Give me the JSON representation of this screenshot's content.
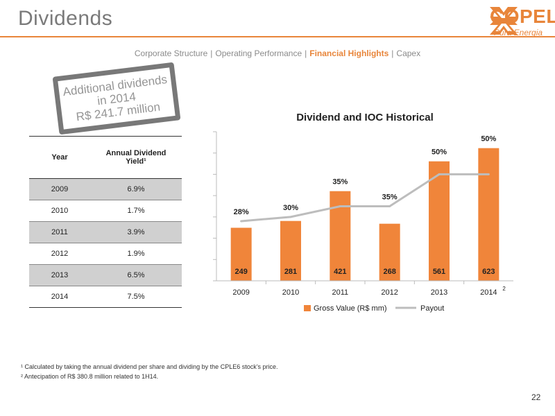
{
  "page": {
    "title": "Dividends",
    "page_number": "22"
  },
  "logo": {
    "name": "COPEL",
    "tagline": "Pura Energia"
  },
  "nav": {
    "items": [
      {
        "label": "Corporate Structure",
        "active": false
      },
      {
        "label": "Operating Performance",
        "active": false
      },
      {
        "label": "Financial Highlights",
        "active": true
      },
      {
        "label": "Capex",
        "active": false
      }
    ],
    "separator": "|"
  },
  "stamp": {
    "line1": "Additional dividends",
    "line2": "in 2014",
    "line3": "R$ 241.7 million"
  },
  "table": {
    "headers": [
      "Year",
      "Annual Dividend Yield¹"
    ],
    "rows": [
      {
        "year": "2009",
        "yield": "6.9%"
      },
      {
        "year": "2010",
        "yield": "1.7%"
      },
      {
        "year": "2011",
        "yield": "3.9%"
      },
      {
        "year": "2012",
        "yield": "1.9%"
      },
      {
        "year": "2013",
        "yield": "6.5%"
      },
      {
        "year": "2014",
        "yield": "7.5%"
      }
    ]
  },
  "chart_data": {
    "type": "bar",
    "title": "Dividend and IOC Historical",
    "categories": [
      "2009",
      "2010",
      "2011",
      "2012",
      "2013",
      "2014"
    ],
    "category_note": {
      "index": 5,
      "text": "2"
    },
    "series": [
      {
        "name": "Gross Value (R$ mm)",
        "type": "bar",
        "color": "#f0853a",
        "values": [
          249,
          281,
          421,
          268,
          561,
          623
        ]
      },
      {
        "name": "Payout",
        "type": "line",
        "color": "#bdbdbd",
        "values": [
          28,
          30,
          35,
          35,
          50,
          50
        ],
        "labels": [
          "28%",
          "30%",
          "35%",
          "35%",
          "50%",
          "50%"
        ]
      }
    ],
    "legend_position": "bottom",
    "grid": false
  },
  "footnotes": {
    "note1": "¹ Calculated by taking the annual dividend per share and dividing by the CPLE6 stock’s price.",
    "note2": "² Antecipation of R$ 380.8 million related to 1H14."
  },
  "colors": {
    "accent": "#e8853a",
    "bar": "#f0853a",
    "line": "#bdbdbd"
  }
}
